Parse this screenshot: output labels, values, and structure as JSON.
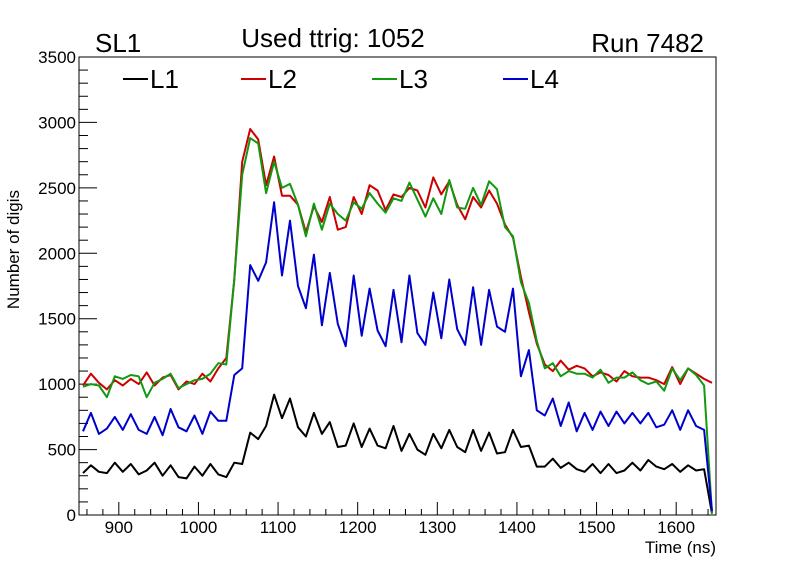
{
  "header": {
    "left": "SL1",
    "center": "Used ttrig: 1052",
    "right": "Run 7482"
  },
  "colors": {
    "L1": "#000000",
    "L2": "#cc0000",
    "L3": "#119911",
    "L4": "#0000cc"
  },
  "chart_data": {
    "type": "line",
    "title": "",
    "xlabel": "Time (ns)",
    "ylabel": "Number of digis",
    "xlim": [
      850,
      1650
    ],
    "ylim": [
      0,
      3500
    ],
    "x_ticks": [
      900,
      1000,
      1100,
      1200,
      1300,
      1400,
      1500,
      1600
    ],
    "y_ticks": [
      0,
      500,
      1000,
      1500,
      2000,
      2500,
      3000,
      3500
    ],
    "grid": false,
    "legend_position": "top",
    "x": [
      855,
      865,
      875,
      885,
      895,
      905,
      915,
      925,
      935,
      945,
      955,
      965,
      975,
      985,
      995,
      1005,
      1015,
      1025,
      1035,
      1045,
      1055,
      1065,
      1075,
      1085,
      1095,
      1105,
      1115,
      1125,
      1135,
      1145,
      1155,
      1165,
      1175,
      1185,
      1195,
      1205,
      1215,
      1225,
      1235,
      1245,
      1255,
      1265,
      1275,
      1285,
      1295,
      1305,
      1315,
      1325,
      1335,
      1345,
      1355,
      1365,
      1375,
      1385,
      1395,
      1405,
      1415,
      1425,
      1435,
      1445,
      1455,
      1465,
      1475,
      1485,
      1495,
      1505,
      1515,
      1525,
      1535,
      1545,
      1555,
      1565,
      1575,
      1585,
      1595,
      1605,
      1615,
      1625,
      1635,
      1645
    ],
    "series": [
      {
        "name": "L1",
        "values": [
          320,
          380,
          330,
          320,
          400,
          330,
          390,
          310,
          340,
          400,
          300,
          380,
          290,
          280,
          370,
          300,
          390,
          310,
          290,
          400,
          390,
          630,
          580,
          680,
          920,
          740,
          890,
          670,
          600,
          780,
          620,
          710,
          520,
          530,
          700,
          520,
          660,
          530,
          510,
          680,
          490,
          620,
          500,
          460,
          620,
          510,
          650,
          520,
          480,
          650,
          490,
          630,
          470,
          480,
          650,
          520,
          530,
          370,
          370,
          430,
          360,
          400,
          350,
          330,
          390,
          320,
          390,
          320,
          340,
          400,
          340,
          420,
          370,
          350,
          390,
          330,
          380,
          340,
          350,
          10
        ]
      },
      {
        "name": "L2",
        "values": [
          990,
          1080,
          1010,
          960,
          1030,
          990,
          1040,
          1000,
          1090,
          990,
          1050,
          1070,
          960,
          1020,
          1000,
          1080,
          1020,
          1120,
          1200,
          1800,
          2700,
          2950,
          2870,
          2520,
          2740,
          2440,
          2440,
          2370,
          2160,
          2360,
          2240,
          2430,
          2180,
          2200,
          2430,
          2300,
          2520,
          2480,
          2330,
          2450,
          2430,
          2500,
          2480,
          2350,
          2580,
          2450,
          2550,
          2370,
          2260,
          2430,
          2350,
          2480,
          2380,
          2220,
          2120,
          1820,
          1550,
          1310,
          1150,
          1100,
          1180,
          1110,
          1140,
          1120,
          1060,
          1090,
          1070,
          1020,
          1100,
          1060,
          1050,
          1050,
          1030,
          1000,
          1130,
          1000,
          1120,
          1080,
          1040,
          1010
        ]
      },
      {
        "name": "L3",
        "values": [
          980,
          1000,
          990,
          900,
          1060,
          1040,
          1070,
          1060,
          900,
          1010,
          1040,
          1080,
          970,
          1000,
          1030,
          1040,
          1080,
          1160,
          1150,
          1800,
          2600,
          2880,
          2840,
          2460,
          2700,
          2500,
          2530,
          2370,
          2130,
          2380,
          2180,
          2380,
          2300,
          2250,
          2390,
          2340,
          2460,
          2380,
          2310,
          2420,
          2400,
          2540,
          2410,
          2280,
          2420,
          2300,
          2560,
          2350,
          2340,
          2500,
          2370,
          2550,
          2490,
          2200,
          2130,
          1780,
          1620,
          1330,
          1120,
          1160,
          1060,
          1100,
          1080,
          1080,
          1050,
          1110,
          1010,
          1050,
          1050,
          1090,
          1030,
          1000,
          1020,
          950,
          1120,
          1030,
          1120,
          1070,
          990,
          10
        ]
      },
      {
        "name": "L4",
        "values": [
          640,
          780,
          620,
          660,
          750,
          650,
          770,
          650,
          620,
          750,
          610,
          810,
          670,
          640,
          760,
          620,
          790,
          720,
          720,
          1070,
          1120,
          1910,
          1790,
          1930,
          2390,
          1830,
          2250,
          1750,
          1580,
          1990,
          1450,
          1850,
          1460,
          1290,
          1830,
          1370,
          1730,
          1410,
          1290,
          1720,
          1320,
          1830,
          1390,
          1300,
          1700,
          1350,
          1800,
          1420,
          1300,
          1740,
          1300,
          1720,
          1440,
          1400,
          1730,
          1060,
          1260,
          800,
          760,
          890,
          680,
          860,
          640,
          780,
          650,
          790,
          680,
          790,
          700,
          780,
          700,
          780,
          670,
          690,
          800,
          650,
          800,
          680,
          650,
          30
        ]
      }
    ]
  }
}
